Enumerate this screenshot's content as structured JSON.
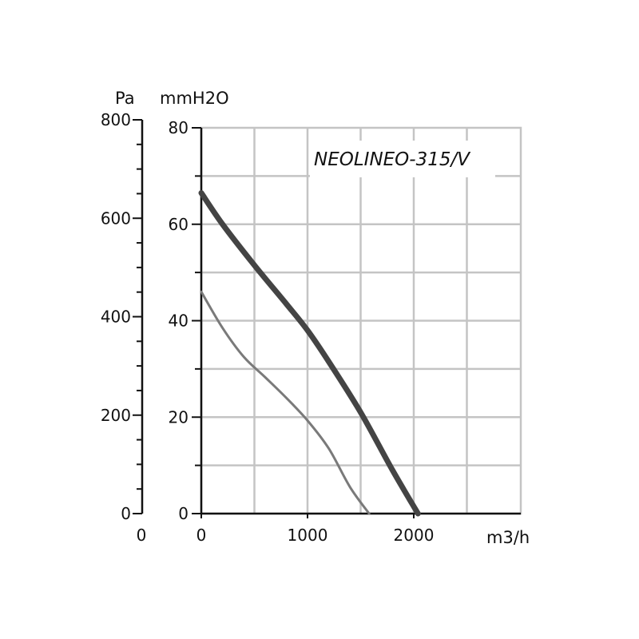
{
  "chart_data": {
    "type": "line",
    "title": "NEOLINEO-315/V",
    "xlabel": "m3/h",
    "ylabel_left": "Pa",
    "ylabel_right": "mmH2O",
    "xlim": [
      0,
      2000
    ],
    "x_ticks": [
      "0",
      "1000",
      "2000"
    ],
    "ylim_pa": [
      0,
      800
    ],
    "pa_ticks": [
      "0",
      "200",
      "400",
      "600",
      "800"
    ],
    "pa_axis_origin_label": "0",
    "ylim_mmh2o": [
      0,
      80
    ],
    "mmh2o_ticks": [
      "0",
      "20",
      "40",
      "60",
      "80"
    ],
    "grid": true,
    "series": [
      {
        "color": "#444444",
        "x": [
          0,
          200,
          500,
          800,
          1000,
          1200,
          1500,
          1800,
          2040
        ],
        "y_mmh2o": [
          66.5,
          60,
          51.5,
          43.5,
          38,
          31.5,
          21,
          9,
          0
        ]
      },
      {
        "color": "#7a7a7a",
        "x": [
          0,
          200,
          400,
          600,
          800,
          1000,
          1200,
          1400,
          1580
        ],
        "y_mmh2o": [
          46,
          38.5,
          32.5,
          28.3,
          24,
          19.3,
          13.5,
          5.5,
          0
        ]
      }
    ]
  }
}
